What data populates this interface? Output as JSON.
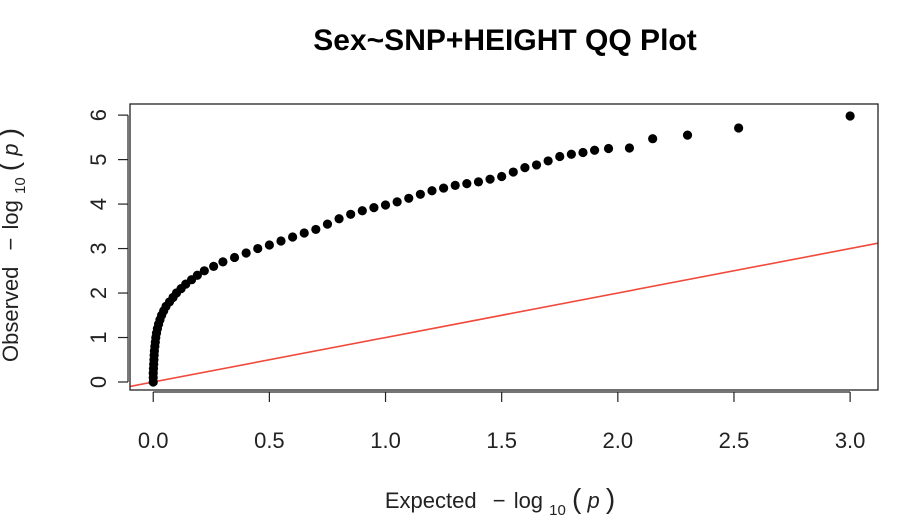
{
  "chart_data": {
    "type": "scatter",
    "title": "Sex~SNP+HEIGHT QQ Plot",
    "xlabel": {
      "prefix": "Expected",
      "minus": "−",
      "log": "log",
      "base": "10",
      "var": "p"
    },
    "ylabel": {
      "prefix": "Observed",
      "minus": "−",
      "log": "log",
      "base": "10",
      "var": "p"
    },
    "xlim": [
      -0.1,
      3.12
    ],
    "ylim": [
      -0.18,
      6.25
    ],
    "x_ticks": [
      {
        "value": 0.0,
        "label": "0.0"
      },
      {
        "value": 0.5,
        "label": "0.5"
      },
      {
        "value": 1.0,
        "label": "1.0"
      },
      {
        "value": 1.5,
        "label": "1.5"
      },
      {
        "value": 2.0,
        "label": "2.0"
      },
      {
        "value": 2.5,
        "label": "2.5"
      },
      {
        "value": 3.0,
        "label": "3.0"
      }
    ],
    "y_ticks": [
      {
        "value": 0,
        "label": "0"
      },
      {
        "value": 1,
        "label": "1"
      },
      {
        "value": 2,
        "label": "2"
      },
      {
        "value": 3,
        "label": "3"
      },
      {
        "value": 4,
        "label": "4"
      },
      {
        "value": 5,
        "label": "5"
      },
      {
        "value": 6,
        "label": "6"
      }
    ],
    "reference_line": {
      "name": "y = x",
      "slope": 1,
      "intercept": 0,
      "color": "#f04a3c"
    },
    "point_color": "#000000",
    "grid": false,
    "points": [
      [
        0.0,
        0.0
      ],
      [
        0.0,
        0.1
      ],
      [
        0.0,
        0.2
      ],
      [
        0.001,
        0.3
      ],
      [
        0.002,
        0.4
      ],
      [
        0.003,
        0.5
      ],
      [
        0.004,
        0.6
      ],
      [
        0.005,
        0.7
      ],
      [
        0.007,
        0.8
      ],
      [
        0.009,
        0.9
      ],
      [
        0.011,
        1.0
      ],
      [
        0.014,
        1.1
      ],
      [
        0.018,
        1.2
      ],
      [
        0.023,
        1.3
      ],
      [
        0.029,
        1.4
      ],
      [
        0.036,
        1.5
      ],
      [
        0.045,
        1.6
      ],
      [
        0.055,
        1.7
      ],
      [
        0.07,
        1.8
      ],
      [
        0.085,
        1.9
      ],
      [
        0.1,
        2.0
      ],
      [
        0.12,
        2.1
      ],
      [
        0.14,
        2.2
      ],
      [
        0.165,
        2.3
      ],
      [
        0.19,
        2.4
      ],
      [
        0.22,
        2.5
      ],
      [
        0.26,
        2.6
      ],
      [
        0.3,
        2.7
      ],
      [
        0.35,
        2.8
      ],
      [
        0.4,
        2.9
      ],
      [
        0.45,
        3.0
      ],
      [
        0.5,
        3.08
      ],
      [
        0.55,
        3.17
      ],
      [
        0.6,
        3.26
      ],
      [
        0.65,
        3.35
      ],
      [
        0.7,
        3.43
      ],
      [
        0.75,
        3.55
      ],
      [
        0.8,
        3.67
      ],
      [
        0.85,
        3.77
      ],
      [
        0.9,
        3.85
      ],
      [
        0.95,
        3.92
      ],
      [
        1.0,
        3.98
      ],
      [
        1.05,
        4.05
      ],
      [
        1.1,
        4.13
      ],
      [
        1.15,
        4.22
      ],
      [
        1.2,
        4.3
      ],
      [
        1.25,
        4.36
      ],
      [
        1.3,
        4.42
      ],
      [
        1.35,
        4.46
      ],
      [
        1.4,
        4.5
      ],
      [
        1.45,
        4.56
      ],
      [
        1.5,
        4.62
      ],
      [
        1.55,
        4.72
      ],
      [
        1.6,
        4.82
      ],
      [
        1.65,
        4.88
      ],
      [
        1.7,
        4.97
      ],
      [
        1.75,
        5.07
      ],
      [
        1.8,
        5.12
      ],
      [
        1.85,
        5.16
      ],
      [
        1.9,
        5.21
      ],
      [
        1.96,
        5.25
      ],
      [
        2.05,
        5.26
      ],
      [
        2.15,
        5.47
      ],
      [
        2.3,
        5.55
      ],
      [
        2.52,
        5.71
      ],
      [
        3.0,
        5.98
      ]
    ]
  }
}
